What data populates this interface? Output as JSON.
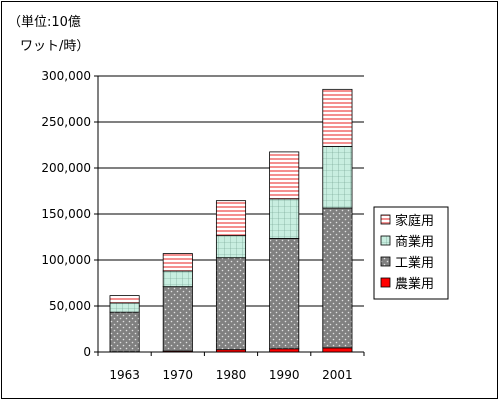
{
  "chart_data": {
    "type": "bar",
    "stacked": true,
    "unit_line1": "（単位:10億",
    "unit_line2": "ワット/時）",
    "categories": [
      "1963",
      "1970",
      "1980",
      "1990",
      "2001"
    ],
    "ylim": [
      0,
      300000
    ],
    "yticks": [
      0,
      50000,
      100000,
      150000,
      200000,
      250000,
      300000
    ],
    "ytick_labels": [
      "0",
      "50,000",
      "100,000",
      "150,000",
      "200,000",
      "250,000",
      "300,000"
    ],
    "grid": true,
    "legend_position": "right",
    "series": [
      {
        "name": "農業用",
        "values": [
          300,
          1000,
          2500,
          3500,
          4500
        ],
        "color": "#ff0000",
        "pattern": "solid"
      },
      {
        "name": "工業用",
        "values": [
          43000,
          70000,
          100000,
          120000,
          152000
        ],
        "color": "#808080",
        "pattern": "dots"
      },
      {
        "name": "商業用",
        "values": [
          10000,
          17000,
          24000,
          43000,
          67000
        ],
        "color": "#c8eee0",
        "pattern": "grid"
      },
      {
        "name": "家庭用",
        "values": [
          8000,
          19000,
          38000,
          51000,
          62000
        ],
        "color": "#ffffff",
        "pattern": "stripes"
      }
    ],
    "legend_order": [
      3,
      2,
      1,
      0
    ]
  }
}
